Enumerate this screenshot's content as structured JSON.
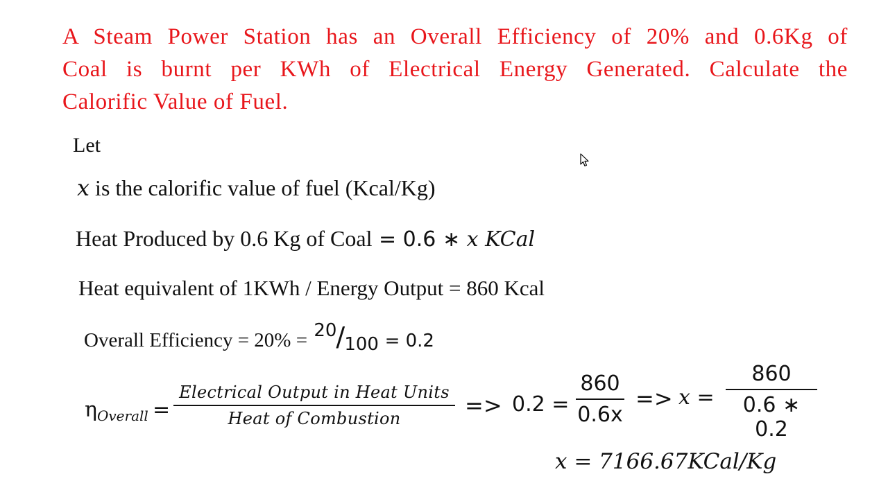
{
  "question": {
    "line1": "A Steam Power Station has an Overall Efficiency of 20% and 0.6Kg of",
    "line2": "Coal is burnt per KWh of Electrical Energy Generated. Calculate the",
    "line3": "Calorific Value of Fuel."
  },
  "solution": {
    "let": "Let",
    "x_var": "x",
    "x_def": " is the calorific value of fuel (Kcal/Kg)",
    "heat_produced_label": "Heat Produced by 0.6 Kg of Coal",
    "heat_produced_expr_eq": " = 0.6 ",
    "heat_produced_expr_star": "∗ ",
    "heat_produced_expr_x": "x KCal",
    "heat_equivalent": "Heat equivalent of 1KWh / Energy Output = 860 Kcal",
    "overall_eff_label": "Overall Efficiency = 20% = ",
    "overall_eff_num": "20",
    "overall_eff_slash": "/",
    "overall_eff_den": "100",
    "overall_eff_result": " = 0.2",
    "eta_symbol": "η",
    "eta_sub": "Overall",
    "eta_eq": "=",
    "frac1_num": "Electrical Output in Heat Units",
    "frac1_den": "Heat of Combustion",
    "implies1": "=>",
    "eq2_left": "0.2 =",
    "frac2_num": "860",
    "frac2_den": "0.6x",
    "implies2": "=>",
    "eq3_left": "x =",
    "frac3_num": "860",
    "frac3_den": "0.6 ∗ 0.2",
    "final_answer": "x = 7166.67KCal/Kg"
  },
  "icons": {
    "cursor": "mouse-pointer-icon"
  }
}
